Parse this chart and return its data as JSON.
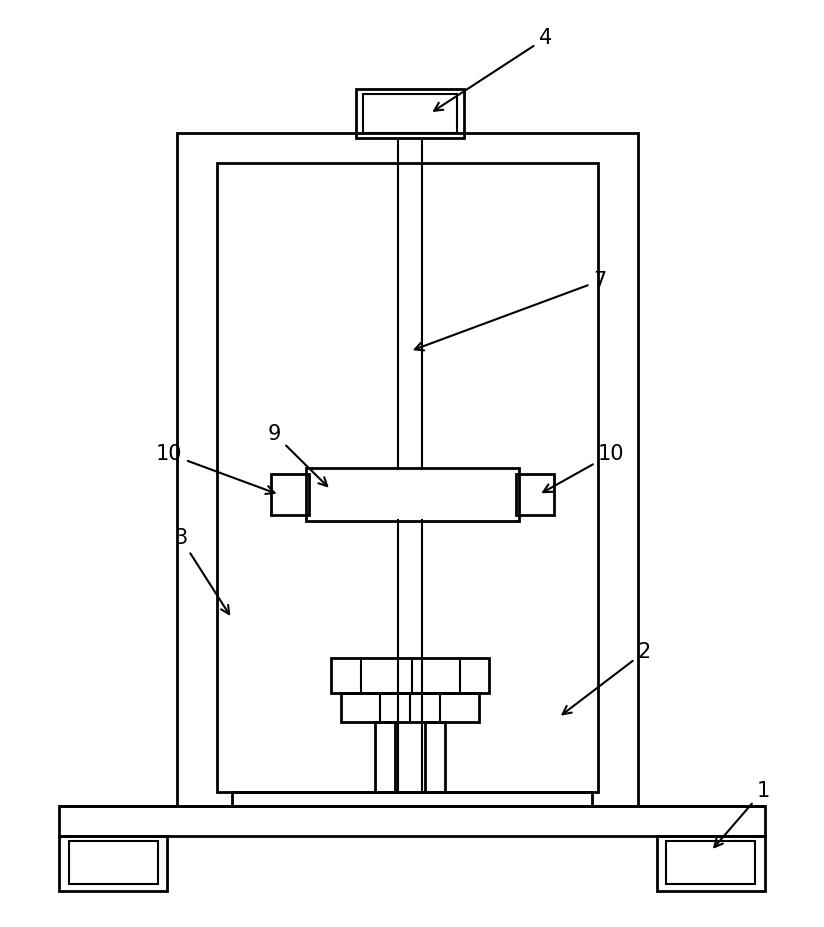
{
  "bg_color": "#ffffff",
  "line_color": "#000000",
  "lw": 2.0,
  "tlw": 1.5,
  "fig_width": 8.24,
  "fig_height": 9.27,
  "label_fontsize": 15
}
